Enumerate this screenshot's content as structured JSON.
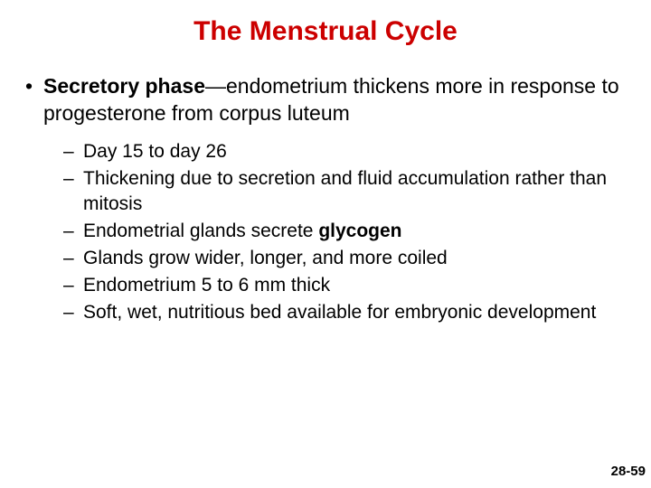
{
  "title": {
    "text": "The Menstrual Cycle",
    "color": "#cc0000",
    "fontsize": 30
  },
  "body_color": "#000000",
  "main_fontsize": 23,
  "sub_fontsize": 21,
  "main": {
    "bold_lead": "Secretory phase",
    "rest": "—endometrium thickens more in response to progesterone from corpus luteum"
  },
  "subs": [
    {
      "text": "Day 15 to day 26"
    },
    {
      "text": "Thickening due to secretion and fluid accumulation rather than mitosis"
    },
    {
      "pre": "Endometrial glands secrete ",
      "bold": "glycogen",
      "post": ""
    },
    {
      "text": "Glands grow wider, longer, and more coiled"
    },
    {
      "text": "Endometrium 5 to 6 mm thick"
    },
    {
      "text": "Soft, wet, nutritious bed available for embryonic development"
    }
  ],
  "pagenum": {
    "text": "28-59",
    "fontsize": 15
  }
}
